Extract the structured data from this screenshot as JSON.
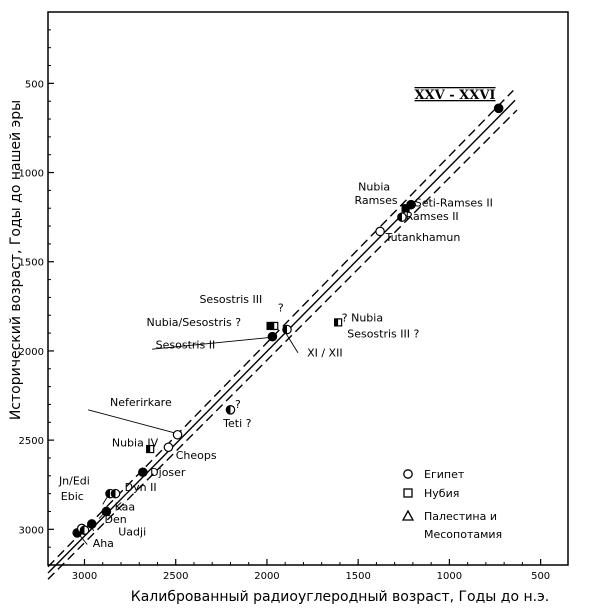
{
  "chart_data": {
    "type": "scatter",
    "xlabel": "Калиброванный радиоуглеродный возраст, Годы до н.э.",
    "ylabel": "Исторический возраст, Годы до нашей эры",
    "xlim": [
      3200,
      350
    ],
    "ylim": [
      100,
      3200
    ],
    "x_ticks": [
      "3000",
      "2500",
      "2000",
      "1500",
      "1000",
      "500"
    ],
    "x_tick_values": [
      3000,
      2500,
      2000,
      1500,
      1000,
      500
    ],
    "y_ticks": [
      "500",
      "1000",
      "1500",
      "2000",
      "2500",
      "3000"
    ],
    "y_tick_values": [
      500,
      1000,
      1500,
      2000,
      2500,
      3000
    ],
    "grid": false,
    "legend_position": "bottom-right",
    "legend": [
      {
        "symbol": "circle",
        "label": "Египет"
      },
      {
        "symbol": "square",
        "label": "Нубия"
      },
      {
        "symbol": "triangle",
        "label": "Палестина  и",
        "label2": "Месопотамия"
      }
    ],
    "dynasty_label": "XXV - XXVI",
    "reference_lines": [
      {
        "style": "dashed",
        "x1": 3200,
        "y1": 3210,
        "x2": 650,
        "y2": 540
      },
      {
        "style": "solid",
        "x1": 3200,
        "y1": 3245,
        "x2": 640,
        "y2": 595
      },
      {
        "style": "dashed",
        "x1": 3200,
        "y1": 3280,
        "x2": 630,
        "y2": 650
      }
    ],
    "points": [
      {
        "x": 3040,
        "y": 3020,
        "fill": "full",
        "symbol": "circle",
        "label": "Aha"
      },
      {
        "x": 3015,
        "y": 2995,
        "fill": "open",
        "symbol": "circle",
        "label": ""
      },
      {
        "x": 2960,
        "y": 2970,
        "fill": "full",
        "symbol": "circle",
        "label": "Den"
      },
      {
        "x": 3000,
        "y": 3005,
        "fill": "half",
        "symbol": "circle",
        "label": "Uadji"
      },
      {
        "x": 2880,
        "y": 2900,
        "fill": "full",
        "symbol": "circle",
        "label": "Kaa"
      },
      {
        "x": 2860,
        "y": 2800,
        "fill": "half",
        "symbol": "circle",
        "label": "Ebic"
      },
      {
        "x": 2830,
        "y": 2800,
        "fill": "half",
        "symbol": "circle",
        "label": "Dyn II"
      },
      {
        "x": 2680,
        "y": 2680,
        "fill": "full",
        "symbol": "circle",
        "label": "Djoser"
      },
      {
        "x": 2640,
        "y": 2550,
        "fill": "half",
        "symbol": "square",
        "label": "Nubia IV"
      },
      {
        "x": 2540,
        "y": 2540,
        "fill": "open",
        "symbol": "circle",
        "label": "Cheops"
      },
      {
        "x": 2490,
        "y": 2470,
        "fill": "open",
        "symbol": "circle",
        "label": "Neferirkare"
      },
      {
        "x": 2200,
        "y": 2330,
        "fill": "half",
        "symbol": "circle",
        "label": "Teti ?"
      },
      {
        "x": 1980,
        "y": 1860,
        "fill": "full",
        "symbol": "square",
        "label": "Nubia/Sesostris ?"
      },
      {
        "x": 1960,
        "y": 1860,
        "fill": "half",
        "symbol": "square",
        "label": ""
      },
      {
        "x": 1970,
        "y": 1920,
        "fill": "full",
        "symbol": "circle",
        "label": "Sesostris II"
      },
      {
        "x": 1890,
        "y": 1880,
        "fill": "half",
        "symbol": "circle",
        "label": "Sesostris III"
      },
      {
        "x": 1610,
        "y": 1840,
        "fill": "half",
        "symbol": "square",
        "label": "Nubia"
      },
      {
        "x": 1380,
        "y": 1330,
        "fill": "open",
        "symbol": "circle",
        "label": "Tutankhamun"
      },
      {
        "x": 1260,
        "y": 1250,
        "fill": "half",
        "symbol": "circle",
        "label": "Ramses II"
      },
      {
        "x": 1240,
        "y": 1200,
        "fill": "full",
        "symbol": "square",
        "label": "Nubia Ramses"
      },
      {
        "x": 1210,
        "y": 1180,
        "fill": "full",
        "symbol": "circle",
        "label": "Seti-Ramses II"
      },
      {
        "x": 730,
        "y": 640,
        "fill": "full",
        "symbol": "circle",
        "label": "XXV - XXVI"
      }
    ],
    "annotations": [
      {
        "id": "ann-jn-edi",
        "text": "Jn/Edi",
        "x": 3140,
        "y": 2750,
        "anchor": "start"
      },
      {
        "id": "ann-ebic",
        "text": "Ebic",
        "x": 3130,
        "y": 2835,
        "anchor": "start"
      },
      {
        "id": "ann-dyn2",
        "text": "Dyn II",
        "x": 2780,
        "y": 2785,
        "anchor": "start"
      },
      {
        "id": "ann-kaa",
        "text": "Kaa",
        "x": 2835,
        "y": 2895,
        "anchor": "start"
      },
      {
        "id": "ann-den",
        "text": "Den",
        "x": 2890,
        "y": 2965,
        "anchor": "start"
      },
      {
        "id": "ann-uadji",
        "text": "Uadji",
        "x": 2815,
        "y": 3035,
        "anchor": "start"
      },
      {
        "id": "ann-aha",
        "text": "Aha",
        "x": 2955,
        "y": 3100,
        "anchor": "start"
      },
      {
        "id": "ann-djoser",
        "text": "Djoser",
        "x": 2640,
        "y": 2700,
        "anchor": "start"
      },
      {
        "id": "ann-nubia4",
        "text": "Nubia IV",
        "x": 2850,
        "y": 2535,
        "anchor": "start"
      },
      {
        "id": "ann-cheops",
        "text": "Cheops",
        "x": 2500,
        "y": 2605,
        "anchor": "start"
      },
      {
        "id": "ann-neferirkare",
        "text": "Neferirkare",
        "x": 2860,
        "y": 2310,
        "anchor": "start"
      },
      {
        "id": "ann-teti-q",
        "text": "?",
        "x": 2175,
        "y": 2320,
        "anchor": "start"
      },
      {
        "id": "ann-teti",
        "text": "Teti ?",
        "x": 2240,
        "y": 2425,
        "anchor": "start"
      },
      {
        "id": "ann-sesostris3-top",
        "text": "Sesostris III",
        "x": 2370,
        "y": 1730,
        "anchor": "start"
      },
      {
        "id": "ann-sesq-top",
        "text": "?",
        "x": 1940,
        "y": 1780,
        "anchor": "start"
      },
      {
        "id": "ann-nubia-sesostris",
        "text": "Nubia/Sesostris ?",
        "x": 2660,
        "y": 1860,
        "anchor": "start"
      },
      {
        "id": "ann-sesostris2",
        "text": "Sesostris II",
        "x": 2610,
        "y": 1985,
        "anchor": "start"
      },
      {
        "id": "ann-xi-xii",
        "text": "XI / XII",
        "x": 1780,
        "y": 2030,
        "anchor": "start"
      },
      {
        "id": "ann-nubia-right-q",
        "text": "? Nubia",
        "x": 1590,
        "y": 1835,
        "anchor": "start"
      },
      {
        "id": "ann-sesostris3-right",
        "text": "Sesostris III ?",
        "x": 1560,
        "y": 1925,
        "anchor": "start"
      },
      {
        "id": "ann-nubia-top",
        "text": "Nubia",
        "x": 1500,
        "y": 1100,
        "anchor": "start"
      },
      {
        "id": "ann-ramses-top",
        "text": "Ramses",
        "x": 1520,
        "y": 1175,
        "anchor": "start"
      },
      {
        "id": "ann-seti-ramses",
        "text": "Seti-Ramses II",
        "x": 1190,
        "y": 1190,
        "anchor": "start"
      },
      {
        "id": "ann-ramses2",
        "text": "Ramses II",
        "x": 1240,
        "y": 1265,
        "anchor": "start"
      },
      {
        "id": "ann-tutankhamun",
        "text": "Tutankhamun",
        "x": 1350,
        "y": 1385,
        "anchor": "start"
      }
    ]
  }
}
